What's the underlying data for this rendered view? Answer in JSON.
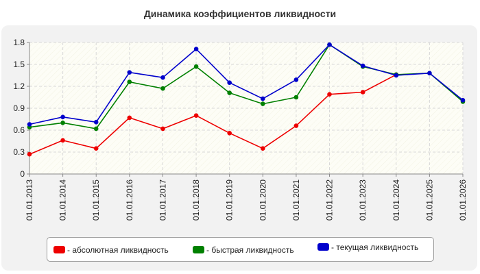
{
  "chart_data": {
    "type": "line",
    "title": "Динамика коэффициентов ликвидности",
    "xlabel": "",
    "ylabel": "",
    "categories": [
      "01.01.2013",
      "01.01.2014",
      "01.01.2015",
      "01.01.2016",
      "01.01.2017",
      "01.01.2018",
      "01.01.2019",
      "01.01.2020",
      "01.01.2021",
      "01.01.2022",
      "01.01.2023",
      "01.01.2024",
      "01.01.2025",
      "01.01.2026"
    ],
    "ylim": [
      0,
      1.8
    ],
    "yticks": [
      "0",
      "0.3",
      "0.6",
      "0.9",
      "1.2",
      "1.5",
      "1.8"
    ],
    "grid": true,
    "legend_position": "bottom",
    "series": [
      {
        "name": "- абсолютная ликвидность",
        "color": "#ee0000",
        "values": [
          0.27,
          0.46,
          0.35,
          0.77,
          0.62,
          0.8,
          0.56,
          0.35,
          0.66,
          1.09,
          1.12,
          1.36,
          null,
          null
        ]
      },
      {
        "name": "- быстрая ликвидность",
        "color": "#008000",
        "values": [
          0.64,
          0.7,
          0.62,
          1.26,
          1.17,
          1.47,
          1.11,
          0.96,
          1.05,
          1.77,
          1.47,
          1.36,
          1.38,
          0.99
        ]
      },
      {
        "name": "- текущая ликвидность",
        "color": "#0000cc",
        "values": [
          0.68,
          0.78,
          0.71,
          1.39,
          1.32,
          1.71,
          1.25,
          1.03,
          1.29,
          1.77,
          1.48,
          1.35,
          1.38,
          1.01
        ]
      }
    ]
  }
}
